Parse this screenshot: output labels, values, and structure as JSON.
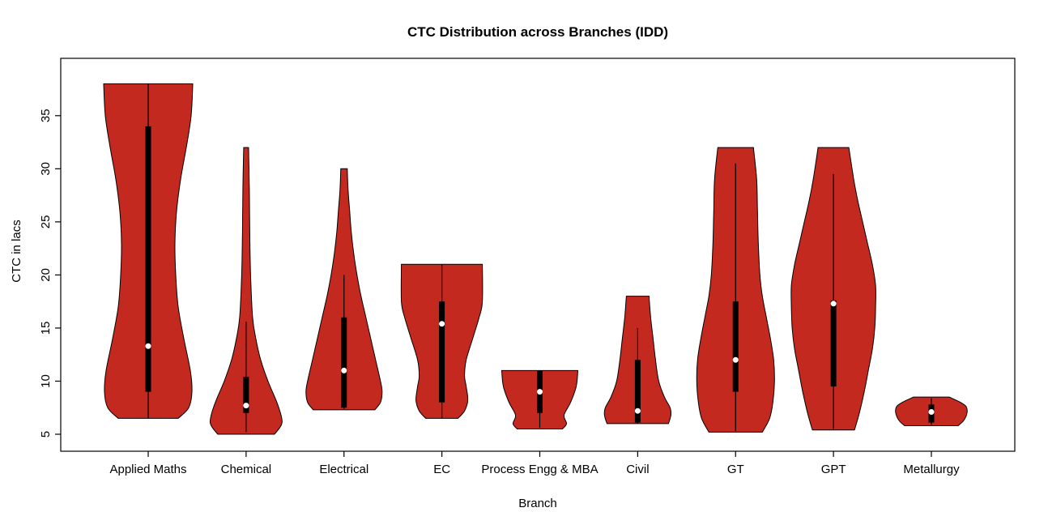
{
  "chart_data": {
    "type": "violin",
    "title": "CTC Distribution across Branches (IDD)",
    "xlabel": "Branch",
    "ylabel": "CTC in lacs",
    "ylim": [
      3.4,
      40.4
    ],
    "yticks": [
      5,
      10,
      15,
      20,
      25,
      30,
      35
    ],
    "grid": false,
    "fill_color": "#C4291F",
    "outline_color": "#000000",
    "background_color": "#ffffff",
    "categories": [
      "Applied Maths",
      "Chemical",
      "Electrical",
      "EC",
      "Process Engg & MBA",
      "Civil",
      "GT",
      "GPT",
      "Metallurgy"
    ],
    "series": [
      {
        "name": "Applied Maths",
        "profile": [
          [
            6.5,
            37
          ],
          [
            7.5,
            50
          ],
          [
            9,
            54
          ],
          [
            11,
            52
          ],
          [
            14,
            44
          ],
          [
            17,
            37
          ],
          [
            20,
            34
          ],
          [
            23,
            33
          ],
          [
            26,
            35
          ],
          [
            29,
            40
          ],
          [
            32,
            47
          ],
          [
            35,
            53
          ],
          [
            38,
            55
          ]
        ],
        "stats": {
          "whisker_low": 6.5,
          "q1": 9,
          "median": 13.3,
          "q3": 34,
          "whisker_high": 38
        }
      },
      {
        "name": "Chemical",
        "profile": [
          [
            5,
            35
          ],
          [
            5.8,
            43
          ],
          [
            6.5,
            44
          ],
          [
            8,
            38
          ],
          [
            10,
            27
          ],
          [
            12,
            18
          ],
          [
            14,
            12
          ],
          [
            16,
            8
          ],
          [
            20,
            5.5
          ],
          [
            24,
            4.5
          ],
          [
            28,
            4
          ],
          [
            32,
            3
          ]
        ],
        "stats": {
          "whisker_low": 5.2,
          "q1": 7,
          "median": 7.7,
          "q3": 10.4,
          "whisker_high": 15.6
        }
      },
      {
        "name": "Electrical",
        "profile": [
          [
            7.3,
            38
          ],
          [
            8,
            45
          ],
          [
            9,
            47
          ],
          [
            10,
            45
          ],
          [
            12,
            39
          ],
          [
            14,
            33
          ],
          [
            16,
            27
          ],
          [
            18,
            21
          ],
          [
            20,
            16
          ],
          [
            22,
            12
          ],
          [
            24,
            9
          ],
          [
            26,
            7
          ],
          [
            28,
            5
          ],
          [
            30,
            4
          ]
        ],
        "stats": {
          "whisker_low": 7.4,
          "q1": 7.5,
          "median": 11,
          "q3": 16,
          "whisker_high": 20
        }
      },
      {
        "name": "EC",
        "profile": [
          [
            6.5,
            20
          ],
          [
            7.2,
            28
          ],
          [
            8.2,
            32
          ],
          [
            9.5,
            30
          ],
          [
            10.5,
            28
          ],
          [
            12,
            30
          ],
          [
            14,
            38
          ],
          [
            16,
            46
          ],
          [
            17.5,
            50
          ],
          [
            21,
            50
          ]
        ],
        "stats": {
          "whisker_low": 6.5,
          "q1": 8,
          "median": 15.4,
          "q3": 17.5,
          "whisker_high": 21
        }
      },
      {
        "name": "Process Engg & MBA",
        "profile": [
          [
            5.5,
            28
          ],
          [
            6,
            33
          ],
          [
            6.8,
            30
          ],
          [
            8,
            38
          ],
          [
            9.5,
            45
          ],
          [
            11,
            47
          ]
        ],
        "stats": {
          "whisker_low": 5.6,
          "q1": 7,
          "median": 9,
          "q3": 11,
          "whisker_high": 11
        }
      },
      {
        "name": "Civil",
        "profile": [
          [
            6,
            38
          ],
          [
            6.8,
            41
          ],
          [
            7.5,
            40
          ],
          [
            8.5,
            33
          ],
          [
            10,
            26
          ],
          [
            12,
            22
          ],
          [
            14,
            19
          ],
          [
            16,
            16
          ],
          [
            18,
            14
          ]
        ],
        "stats": {
          "whisker_low": 6,
          "q1": 6.1,
          "median": 7.2,
          "q3": 12,
          "whisker_high": 15
        }
      },
      {
        "name": "GT",
        "profile": [
          [
            5.2,
            33
          ],
          [
            6.5,
            42
          ],
          [
            8,
            46
          ],
          [
            10,
            48
          ],
          [
            12,
            47
          ],
          [
            14,
            43
          ],
          [
            16,
            38
          ],
          [
            18,
            33
          ],
          [
            20,
            30
          ],
          [
            23,
            28
          ],
          [
            26,
            27
          ],
          [
            29,
            26
          ],
          [
            32,
            22
          ]
        ],
        "stats": {
          "whisker_low": 5.3,
          "q1": 9,
          "median": 12,
          "q3": 17.5,
          "whisker_high": 30.5
        }
      },
      {
        "name": "GPT",
        "profile": [
          [
            5.4,
            26
          ],
          [
            7,
            32
          ],
          [
            9,
            38
          ],
          [
            11,
            43
          ],
          [
            13,
            48
          ],
          [
            15,
            51
          ],
          [
            17,
            52
          ],
          [
            19,
            52
          ],
          [
            21,
            48
          ],
          [
            23,
            42
          ],
          [
            25,
            36
          ],
          [
            27,
            30
          ],
          [
            29,
            25
          ],
          [
            32,
            19
          ]
        ],
        "stats": {
          "whisker_low": 5.5,
          "q1": 9.5,
          "median": 17.3,
          "q3": 17.6,
          "whisker_high": 29.5
        }
      },
      {
        "name": "Metallurgy",
        "profile": [
          [
            5.8,
            33
          ],
          [
            6.3,
            40
          ],
          [
            7,
            44
          ],
          [
            7.6,
            43
          ],
          [
            8,
            36
          ],
          [
            8.5,
            22
          ]
        ],
        "stats": {
          "whisker_low": 5.9,
          "q1": 6.1,
          "median": 7.1,
          "q3": 7.8,
          "whisker_high": 8.4
        }
      }
    ]
  }
}
